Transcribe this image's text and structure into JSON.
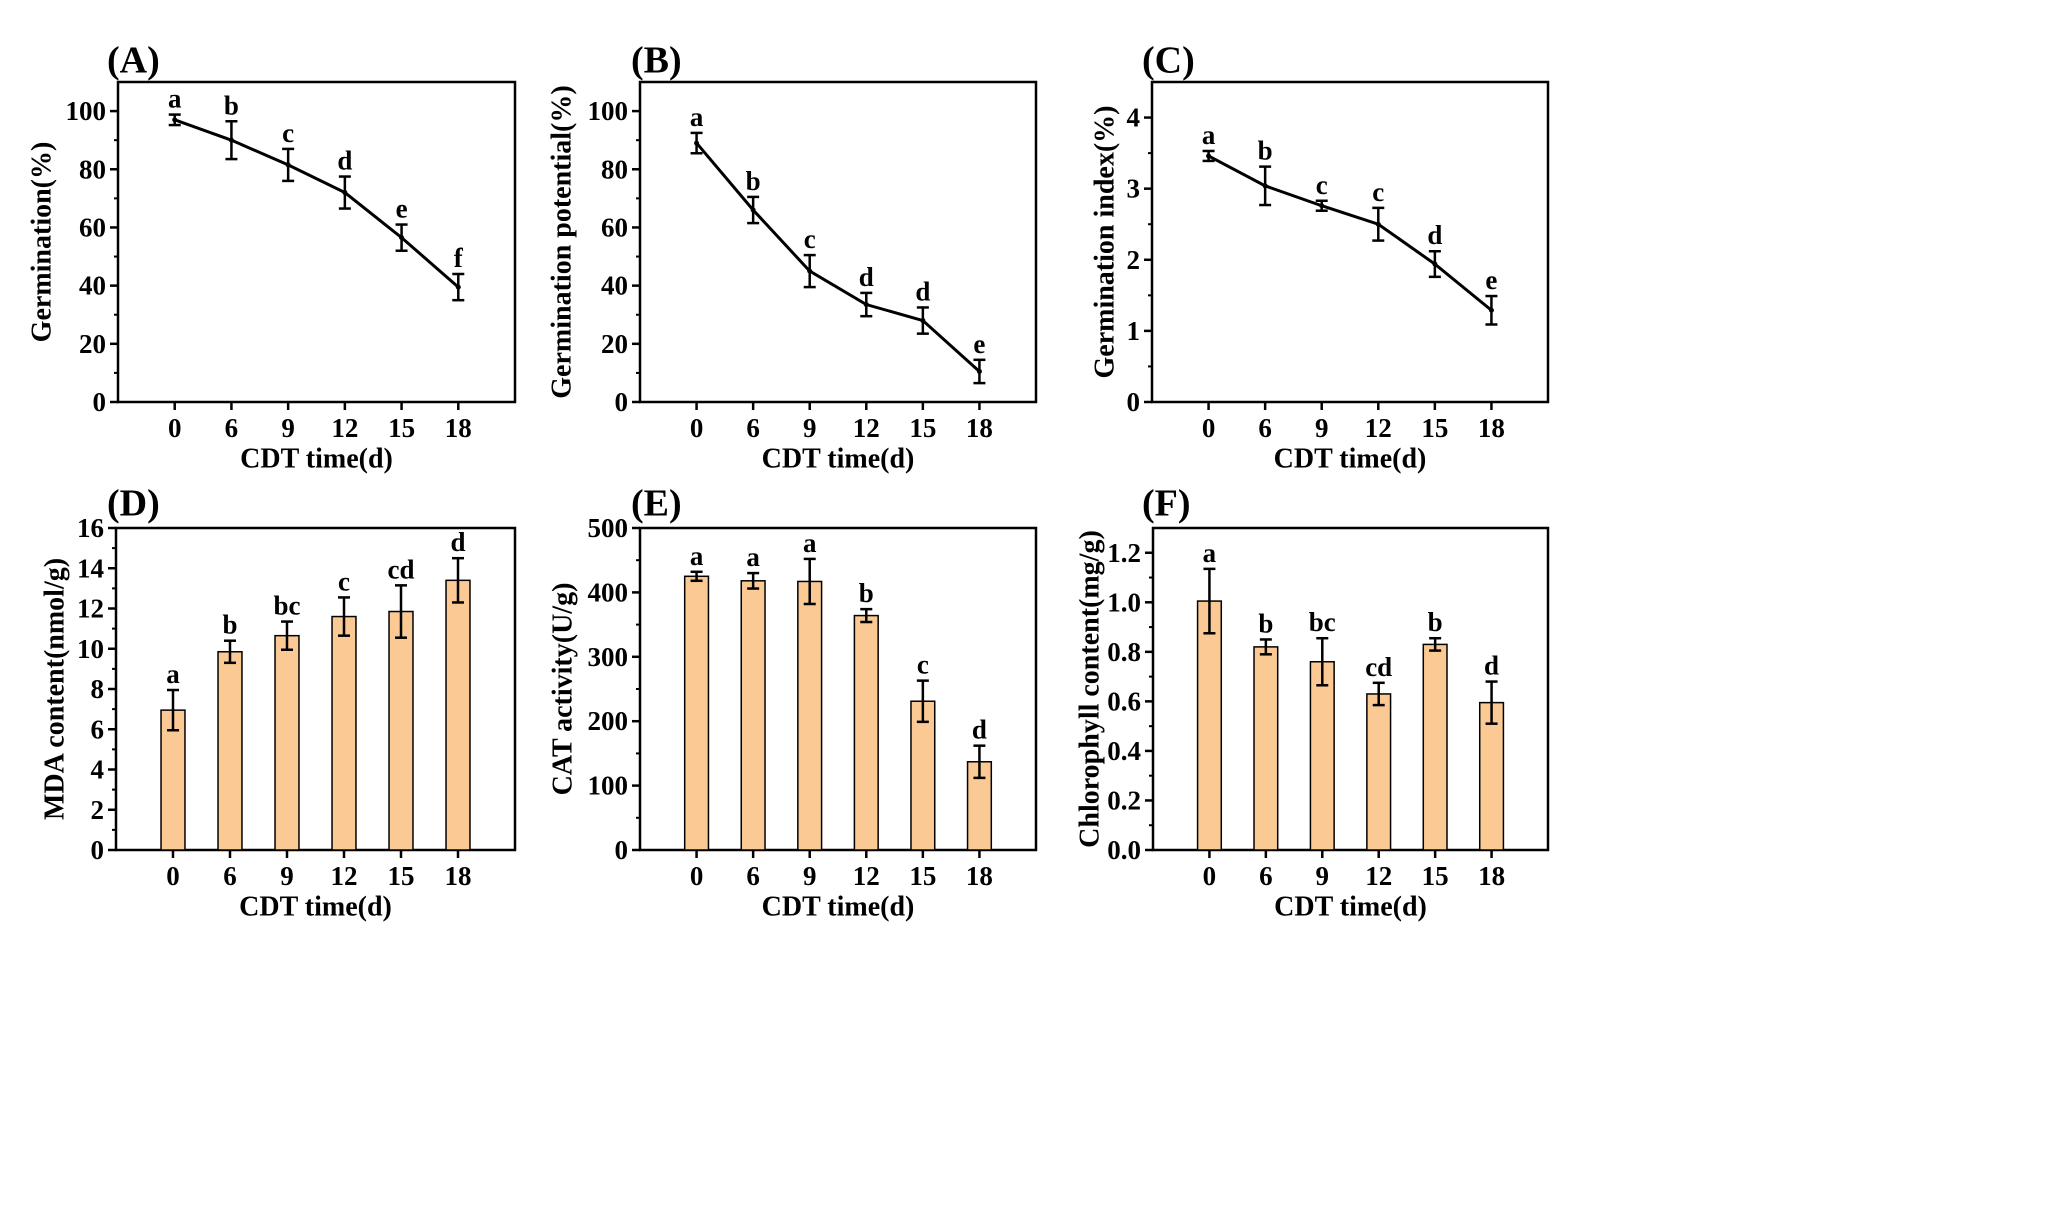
{
  "chart_data": [
    {
      "type": "line",
      "panel_label": "(A)",
      "categories": [
        "0",
        "6",
        "9",
        "12",
        "15",
        "18"
      ],
      "values": [
        97,
        90,
        81.5,
        72,
        56.5,
        39.5
      ],
      "errors": [
        1.8,
        6.5,
        5.5,
        5.5,
        4.5,
        4.5
      ],
      "significance": [
        "a",
        "b",
        "c",
        "d",
        "e",
        "f"
      ],
      "xlabel": "CDT time(d)",
      "ylabel": "Germination(%)",
      "ylim": [
        0,
        110
      ],
      "yticks": [
        "0",
        "20",
        "40",
        "60",
        "80",
        "100"
      ]
    },
    {
      "type": "line",
      "panel_label": "(B)",
      "categories": [
        "0",
        "6",
        "9",
        "12",
        "15",
        "18"
      ],
      "values": [
        89,
        66,
        45,
        33.5,
        28,
        10.5
      ],
      "errors": [
        3.5,
        4.5,
        5.5,
        4,
        4.5,
        4
      ],
      "significance": [
        "a",
        "b",
        "c",
        "d",
        "d",
        "e"
      ],
      "xlabel": "CDT time(d)",
      "ylabel": "Germination potential(%)",
      "ylim": [
        0,
        110
      ],
      "yticks": [
        "0",
        "20",
        "40",
        "60",
        "80",
        "100"
      ]
    },
    {
      "type": "line",
      "panel_label": "(C)",
      "categories": [
        "0",
        "6",
        "9",
        "12",
        "15",
        "18"
      ],
      "values": [
        3.46,
        3.04,
        2.76,
        2.5,
        1.94,
        1.29
      ],
      "errors": [
        0.07,
        0.27,
        0.07,
        0.23,
        0.18,
        0.2
      ],
      "significance": [
        "a",
        "b",
        "c",
        "c",
        "d",
        "e"
      ],
      "xlabel": "CDT time(d)",
      "ylabel": "Germination index(%)",
      "ylim": [
        0,
        4.5
      ],
      "yticks": [
        "0",
        "1",
        "2",
        "3",
        "4"
      ]
    },
    {
      "type": "bar",
      "panel_label": "(D)",
      "categories": [
        "0",
        "6",
        "9",
        "12",
        "15",
        "18"
      ],
      "values": [
        6.95,
        9.85,
        10.65,
        11.6,
        11.85,
        13.4
      ],
      "errors": [
        1.0,
        0.55,
        0.7,
        0.95,
        1.3,
        1.1
      ],
      "significance": [
        "a",
        "b",
        "bc",
        "c",
        "cd",
        "d"
      ],
      "xlabel": "CDT time(d)",
      "ylabel": "MDA content(nmol/g)",
      "ylim": [
        0,
        16
      ],
      "yticks": [
        "0",
        "2",
        "4",
        "6",
        "8",
        "10",
        "12",
        "14",
        "16"
      ]
    },
    {
      "type": "bar",
      "panel_label": "(E)",
      "categories": [
        "0",
        "6",
        "9",
        "12",
        "15",
        "18"
      ],
      "values": [
        425,
        418,
        417,
        364,
        231,
        137
      ],
      "errors": [
        7,
        12,
        35,
        10,
        32,
        25
      ],
      "significance": [
        "a",
        "a",
        "a",
        "b",
        "c",
        "d"
      ],
      "xlabel": "CDT time(d)",
      "ylabel": "CAT activity(U/g)",
      "ylim": [
        0,
        500
      ],
      "yticks": [
        "0",
        "100",
        "200",
        "300",
        "400",
        "500"
      ]
    },
    {
      "type": "bar",
      "panel_label": "(F)",
      "categories": [
        "0",
        "6",
        "9",
        "12",
        "15",
        "18"
      ],
      "values": [
        1.005,
        0.82,
        0.76,
        0.63,
        0.83,
        0.595
      ],
      "errors": [
        0.13,
        0.03,
        0.095,
        0.045,
        0.025,
        0.085
      ],
      "significance": [
        "a",
        "b",
        "bc",
        "cd",
        "b",
        "d"
      ],
      "xlabel": "CDT time(d)",
      "ylabel": "Chlorophyll content(mg/g)",
      "ylim": [
        0,
        1.3
      ],
      "yticks": [
        "0.0",
        "0.2",
        "0.4",
        "0.6",
        "0.8",
        "1.0",
        "1.2"
      ]
    }
  ],
  "colors": {
    "bar_fill": "#fbc994",
    "stroke": "#000000",
    "background": "#ffffff"
  }
}
